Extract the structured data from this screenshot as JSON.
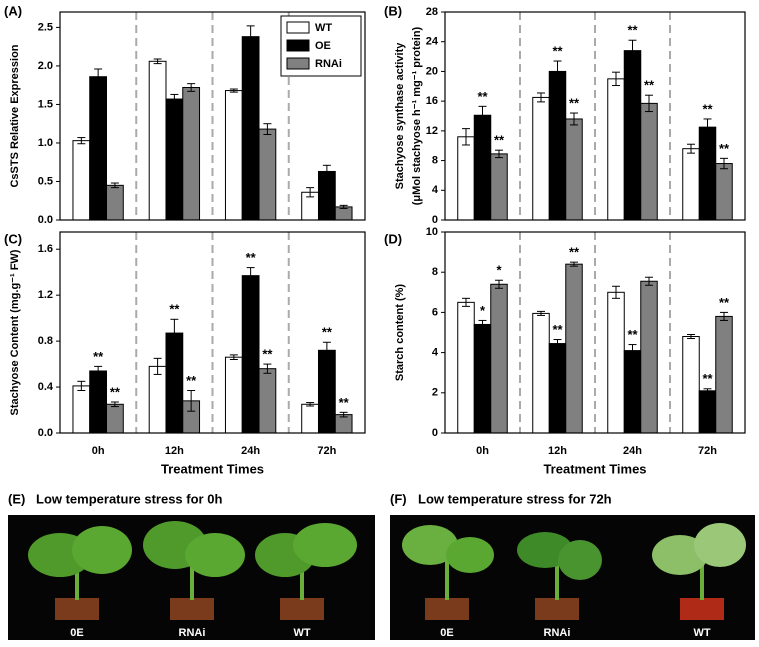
{
  "chart_data": [
    {
      "type": "bar",
      "panel_label": "(A)",
      "ylabel": [
        "CsSTS Relative Expression"
      ],
      "categories": [
        null,
        null,
        null,
        null
      ],
      "series": [
        {
          "name": "WT",
          "color": "#ffffff",
          "values": [
            1.03,
            2.06,
            1.68,
            0.36
          ],
          "errors": [
            0.04,
            0.03,
            0.02,
            0.06
          ]
        },
        {
          "name": "OE",
          "color": "#000000",
          "values": [
            1.86,
            1.57,
            2.38,
            0.63
          ],
          "errors": [
            0.1,
            0.06,
            0.14,
            0.08
          ]
        },
        {
          "name": "RNAi",
          "color": "#808080",
          "values": [
            0.45,
            1.72,
            1.18,
            0.17
          ],
          "errors": [
            0.03,
            0.05,
            0.07,
            0.02
          ]
        }
      ],
      "ylim": [
        0,
        2.7
      ],
      "yticks": [
        {
          "value": 0,
          "label": "0.0"
        },
        0.5,
        {
          "value": 1,
          "label": "1.0"
        },
        1.5,
        {
          "value": 2,
          "label": "2.0"
        },
        2.5
      ],
      "legend": "upper right"
    },
    {
      "type": "bar",
      "panel_label": "(B)",
      "ylabel": [
        "Stachyose synthase activity",
        "(μMol stachyose h⁻¹ mg⁻¹ protein)"
      ],
      "categories": [
        null,
        null,
        null,
        null
      ],
      "series": [
        {
          "color": "#ffffff",
          "values": [
            11.2,
            16.5,
            19,
            9.6
          ],
          "errors": [
            1.1,
            0.6,
            0.9,
            0.6
          ]
        },
        {
          "color": "#000000",
          "values": [
            14.1,
            20,
            22.8,
            12.5
          ],
          "errors": [
            1.2,
            1.4,
            1.4,
            1.1
          ],
          "significance": [
            "**",
            "**",
            "**",
            "**"
          ]
        },
        {
          "color": "#808080",
          "values": [
            8.9,
            13.6,
            15.7,
            7.6
          ],
          "errors": [
            0.5,
            0.8,
            1.1,
            0.7
          ],
          "significance": [
            "**",
            "**",
            "**",
            "**"
          ]
        }
      ],
      "ylim": [
        0,
        28
      ],
      "yticks": [
        0,
        4,
        8,
        12,
        16,
        20,
        24,
        28
      ]
    },
    {
      "type": "bar",
      "panel_label": "(C)",
      "ylabel": [
        "Stachyose Content (mg.g⁻¹ FW)"
      ],
      "xlabel": "Treatment Times",
      "categories": [
        "0h",
        "12h",
        "24h",
        "72h"
      ],
      "series": [
        {
          "color": "#ffffff",
          "values": [
            0.41,
            0.58,
            0.66,
            0.25
          ],
          "errors": [
            0.04,
            0.07,
            0.02,
            0.015
          ]
        },
        {
          "color": "#000000",
          "values": [
            0.54,
            0.87,
            1.37,
            0.72
          ],
          "errors": [
            0.04,
            0.12,
            0.07,
            0.07
          ],
          "significance": [
            "**",
            "**",
            "**",
            "**"
          ]
        },
        {
          "color": "#808080",
          "values": [
            0.25,
            0.28,
            0.56,
            0.16
          ],
          "errors": [
            0.02,
            0.09,
            0.04,
            0.02
          ],
          "significance": [
            "**",
            "**",
            "**",
            "**"
          ]
        }
      ],
      "ylim": [
        0,
        1.75
      ],
      "yticks": [
        {
          "value": 0,
          "label": "0.0"
        },
        0.4,
        0.8,
        1.2,
        1.6
      ]
    },
    {
      "type": "bar",
      "panel_label": "(D)",
      "ylabel": [
        "Starch content (%)"
      ],
      "xlabel": "Treatment Times",
      "categories": [
        "0h",
        "12h",
        "24h",
        "72h"
      ],
      "series": [
        {
          "color": "#ffffff",
          "values": [
            6.5,
            5.95,
            7.0,
            4.8
          ],
          "errors": [
            0.2,
            0.1,
            0.3,
            0.1
          ]
        },
        {
          "color": "#000000",
          "values": [
            5.4,
            4.45,
            4.1,
            2.1
          ],
          "errors": [
            0.2,
            0.2,
            0.3,
            0.1
          ],
          "significance": [
            "*",
            "**",
            "**",
            "**"
          ]
        },
        {
          "color": "#808080",
          "values": [
            7.4,
            8.4,
            7.55,
            5.8
          ],
          "errors": [
            0.2,
            0.1,
            0.2,
            0.2
          ],
          "significance": [
            "*",
            "**",
            null,
            "**"
          ]
        }
      ],
      "ylim": [
        0,
        10
      ],
      "yticks": [
        0,
        2,
        4,
        6,
        8,
        10
      ]
    }
  ],
  "photos": [
    {
      "label": "(E)",
      "title": "Low temperature stress for 0h",
      "plants": [
        "0E",
        "RNAi",
        "WT"
      ]
    },
    {
      "label": "(F)",
      "title": "Low temperature stress for 72h",
      "plants": [
        "0E",
        "RNAi",
        "WT"
      ]
    }
  ]
}
